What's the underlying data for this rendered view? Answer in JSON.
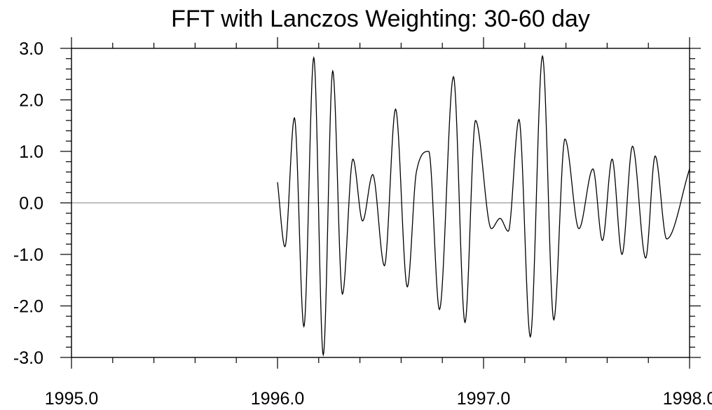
{
  "chart_data": {
    "type": "line",
    "title": "FFT with Lanczos Weighting: 30-60 day",
    "xlabel": "",
    "ylabel": "",
    "xlim": [
      1995.0,
      1998.0
    ],
    "ylim": [
      -3.0,
      3.0
    ],
    "x_major_ticks": [
      1995.0,
      1996.0,
      1997.0,
      1998.0
    ],
    "x_tick_labels": [
      "1995.0",
      "1996.0",
      "1997.0",
      "1998.0"
    ],
    "y_major_ticks": [
      -3.0,
      -2.0,
      -1.0,
      0.0,
      1.0,
      2.0,
      3.0
    ],
    "y_tick_labels": [
      "-3.0",
      "-2.0",
      "-1.0",
      "0.0",
      "1.0",
      "2.0",
      "3.0"
    ],
    "reference_line_y": 0.0,
    "grid": false,
    "series": [
      {
        "color": "#000000",
        "x": [
          1996.0,
          1996.036,
          1996.082,
          1996.128,
          1996.176,
          1996.222,
          1996.268,
          1996.315,
          1996.366,
          1996.413,
          1996.462,
          1996.519,
          1996.573,
          1996.63,
          1996.674,
          1996.734,
          1996.786,
          1996.854,
          1996.91,
          1996.961,
          1997.038,
          1997.08,
          1997.12,
          1997.172,
          1997.227,
          1997.286,
          1997.341,
          1997.395,
          1997.463,
          1997.531,
          1997.577,
          1997.624,
          1997.672,
          1997.723,
          1997.787,
          1997.833,
          1997.889,
          1998.0
        ],
        "y": [
          0.4,
          -0.85,
          1.65,
          -2.4,
          2.82,
          -2.95,
          2.56,
          -1.77,
          0.85,
          -0.35,
          0.55,
          -1.22,
          1.82,
          -1.63,
          0.6,
          1.0,
          -2.07,
          2.45,
          -2.32,
          1.6,
          -0.5,
          -0.3,
          -0.55,
          1.62,
          -2.6,
          2.85,
          -2.27,
          1.24,
          -0.5,
          0.66,
          -0.73,
          0.85,
          -1.0,
          1.1,
          -1.07,
          0.91,
          -0.7,
          0.66
        ]
      }
    ]
  }
}
